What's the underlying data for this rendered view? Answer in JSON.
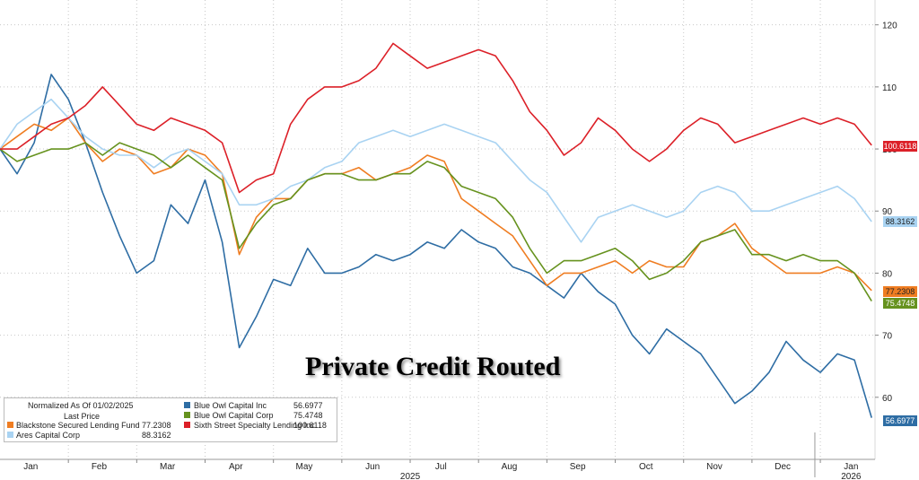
{
  "chart_data": {
    "type": "line",
    "title": "Private Credit Routed",
    "ylim": [
      50,
      124
    ],
    "y_ticks": [
      60,
      70,
      80,
      90,
      100,
      110,
      120
    ],
    "x_months": [
      "Jan",
      "Feb",
      "Mar",
      "Apr",
      "May",
      "Jun",
      "Jul",
      "Aug",
      "Sep",
      "Oct",
      "Nov",
      "Dec",
      "Jan"
    ],
    "x_years": [
      "2025",
      "2026"
    ],
    "grid": true,
    "legend_placement": "bottom-left",
    "legend": {
      "header": "Normalized As Of 01/02/2025",
      "subheader": "Last Price"
    },
    "x": [
      0,
      0.25,
      0.5,
      0.75,
      1,
      1.25,
      1.5,
      1.75,
      2,
      2.25,
      2.5,
      2.75,
      3,
      3.25,
      3.5,
      3.75,
      4,
      4.25,
      4.5,
      4.75,
      5,
      5.25,
      5.5,
      5.75,
      6,
      6.25,
      6.5,
      6.75,
      7,
      7.25,
      7.5,
      7.75,
      8,
      8.25,
      8.5,
      8.75,
      9,
      9.25,
      9.5,
      9.75,
      10,
      10.25,
      10.5,
      10.75,
      11,
      11.25,
      11.5,
      11.75,
      12,
      12.25,
      12.5,
      12.75
    ],
    "series": [
      {
        "name": "Blue Owl Capital Inc",
        "color": "#2e6da4",
        "last": "56.6977",
        "values": [
          100,
          96,
          101,
          112,
          108,
          101,
          93,
          86,
          80,
          82,
          91,
          88,
          95,
          85,
          68,
          73,
          79,
          78,
          84,
          80,
          80,
          81,
          83,
          82,
          83,
          85,
          84,
          87,
          85,
          84,
          81,
          80,
          78,
          76,
          80,
          77,
          75,
          70,
          67,
          71,
          69,
          67,
          63,
          59,
          61,
          64,
          69,
          66,
          64,
          67,
          66,
          56.7
        ]
      },
      {
        "name": "Blackstone Secured Lending Fund",
        "color": "#ef7d22",
        "last": "77.2308",
        "values": [
          100,
          102,
          104,
          103,
          105,
          101,
          98,
          100,
          99,
          96,
          97,
          100,
          99,
          96,
          83,
          89,
          92,
          92,
          95,
          96,
          96,
          97,
          95,
          96,
          97,
          99,
          98,
          92,
          90,
          88,
          86,
          82,
          78,
          80,
          80,
          81,
          82,
          80,
          82,
          81,
          81,
          85,
          86,
          88,
          84,
          82,
          80,
          80,
          80,
          81,
          80,
          77.2
        ]
      },
      {
        "name": "Ares Capital Corp",
        "color": "#a9d3f2",
        "last": "88.3162",
        "values": [
          100,
          104,
          106,
          108,
          105,
          102,
          100,
          99,
          99,
          97,
          99,
          100,
          98,
          96,
          91,
          91,
          92,
          94,
          95,
          97,
          98,
          101,
          102,
          103,
          102,
          103,
          104,
          103,
          102,
          101,
          98,
          95,
          93,
          89,
          85,
          89,
          90,
          91,
          90,
          89,
          90,
          93,
          94,
          93,
          90,
          90,
          91,
          92,
          93,
          94,
          92,
          88.3
        ]
      },
      {
        "name": "Blue Owl Capital Corp",
        "color": "#66921e",
        "last": "75.4748",
        "values": [
          100,
          98,
          99,
          100,
          100,
          101,
          99,
          101,
          100,
          99,
          97,
          99,
          97,
          95,
          84,
          88,
          91,
          92,
          95,
          96,
          96,
          95,
          95,
          96,
          96,
          98,
          97,
          94,
          93,
          92,
          89,
          84,
          80,
          82,
          82,
          83,
          84,
          82,
          79,
          80,
          82,
          85,
          86,
          87,
          83,
          83,
          82,
          83,
          82,
          82,
          80,
          75.5
        ]
      },
      {
        "name": "Sixth Street Specialty Lending Inc",
        "color": "#dc2028",
        "last": "100.6118",
        "values": [
          100,
          100,
          102,
          104,
          105,
          107,
          110,
          107,
          104,
          103,
          105,
          104,
          103,
          101,
          93,
          95,
          96,
          104,
          108,
          110,
          110,
          111,
          113,
          117,
          115,
          113,
          114,
          115,
          116,
          115,
          111,
          106,
          103,
          99,
          101,
          105,
          103,
          100,
          98,
          100,
          103,
          105,
          104,
          101,
          102,
          103,
          104,
          105,
          104,
          105,
          104,
          100.6
        ]
      }
    ]
  }
}
